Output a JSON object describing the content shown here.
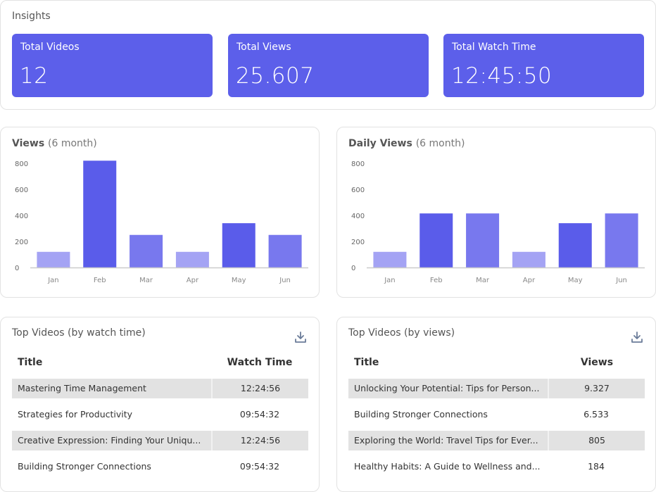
{
  "insights": {
    "title": "Insights",
    "stats": [
      {
        "label": "Total Videos",
        "value": "12"
      },
      {
        "label": "Total Views",
        "value": "25.607"
      },
      {
        "label": "Total Watch Time",
        "value": "12:45:50"
      }
    ],
    "accent": "#5c5fea"
  },
  "chart_data": [
    {
      "type": "bar",
      "title": "Views",
      "subtitle": "(6 month)",
      "categories": [
        "Jan",
        "Feb",
        "Mar",
        "Apr",
        "May",
        "Jun"
      ],
      "values": [
        120,
        820,
        250,
        120,
        340,
        250
      ],
      "yticks": [
        0,
        200,
        400,
        600,
        800
      ],
      "ylim": [
        0,
        800
      ],
      "xlabel": "",
      "ylabel": "",
      "grid": false,
      "colors": [
        "#a4a3f4",
        "#5a5cea",
        "#7878ee",
        "#a4a3f4",
        "#5a5cea",
        "#7878ee"
      ]
    },
    {
      "type": "bar",
      "title": "Daily Views",
      "subtitle": "(6 month)",
      "categories": [
        "Jan",
        "Feb",
        "Mar",
        "Apr",
        "May",
        "Jun"
      ],
      "values": [
        120,
        415,
        415,
        120,
        340,
        415
      ],
      "yticks": [
        0,
        200,
        400,
        600,
        800
      ],
      "ylim": [
        0,
        800
      ],
      "xlabel": "",
      "ylabel": "",
      "grid": false,
      "colors": [
        "#a4a3f4",
        "#5a5cea",
        "#7878ee",
        "#a4a3f4",
        "#5a5cea",
        "#7878ee"
      ]
    }
  ],
  "tables": [
    {
      "title": "Top Videos (by watch time)",
      "download_icon": "download-icon",
      "columns": [
        "Title",
        "Watch Time"
      ],
      "rows": [
        {
          "title": "Mastering Time Management",
          "value": "12:24:56"
        },
        {
          "title": "Strategies for Productivity",
          "value": "09:54:32"
        },
        {
          "title": "Creative Expression: Finding Your Uniqu...",
          "value": "12:24:56"
        },
        {
          "title": "Building Stronger Connections",
          "value": "09:54:32"
        }
      ]
    },
    {
      "title": "Top Videos (by views)",
      "download_icon": "download-icon",
      "columns": [
        "Title",
        "Views"
      ],
      "rows": [
        {
          "title": "Unlocking Your Potential: Tips for Person...",
          "value": "9.327"
        },
        {
          "title": "Building Stronger Connections",
          "value": "6.533"
        },
        {
          "title": "Exploring the World: Travel Tips for Ever...",
          "value": "805"
        },
        {
          "title": "Healthy Habits: A Guide to Wellness and...",
          "value": "184"
        }
      ]
    }
  ]
}
